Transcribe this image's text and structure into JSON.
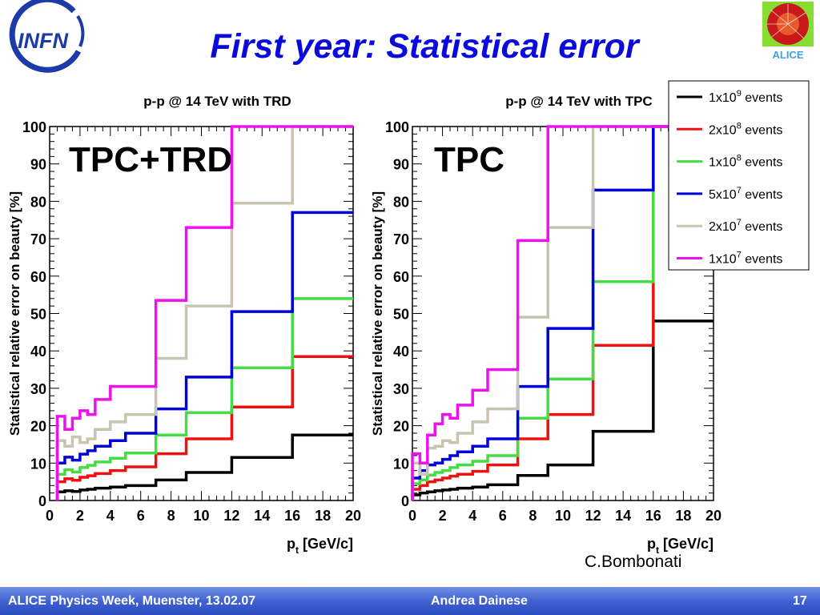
{
  "slide": {
    "title": "First year: Statistical error",
    "infn_logo_text": "INFN",
    "alice_logo_text": "ALICE",
    "left_panel_label": "TPC+TRD",
    "right_panel_label": "TPC",
    "credit": "C.Bombonati"
  },
  "footer": {
    "left": "ALICE Physics Week, Muenster, 13.02.07",
    "center": "Andrea Dainese",
    "page_number": "17"
  },
  "colors": {
    "title": "#0a0adc",
    "footer": "#3d5fd0",
    "1e9": "#000000",
    "2e8": "#ee1111",
    "1e8": "#44dd44",
    "5e7": "#0000dd",
    "2e7": "#c8c4b0",
    "1e7": "#ee11ee"
  },
  "legend": {
    "entries": [
      {
        "key": "1e9",
        "mantissa": "1x10",
        "exponent": "9",
        "suffix": " events"
      },
      {
        "key": "2e8",
        "mantissa": "2x10",
        "exponent": "8",
        "suffix": " events"
      },
      {
        "key": "1e8",
        "mantissa": "1x10",
        "exponent": "8",
        "suffix": " events"
      },
      {
        "key": "5e7",
        "mantissa": "5x10",
        "exponent": "7",
        "suffix": " events"
      },
      {
        "key": "2e7",
        "mantissa": "2x10",
        "exponent": "7",
        "suffix": " events"
      },
      {
        "key": "1e7",
        "mantissa": "1x10",
        "exponent": "7",
        "suffix": " events"
      }
    ]
  },
  "chart_data": [
    {
      "type": "line",
      "title": "p-p @ 14 TeV with TRD",
      "xlabel": "p",
      "xlabel_sub": "t",
      "xlabel_unit": " [GeV/c]",
      "ylabel": "Statistical relative error on beauty [%]",
      "xlim": [
        0,
        20
      ],
      "ylim": [
        0,
        100
      ],
      "xticks": [
        0,
        2,
        4,
        6,
        8,
        10,
        12,
        14,
        16,
        18,
        20
      ],
      "yticks": [
        0,
        10,
        20,
        30,
        40,
        50,
        60,
        70,
        80,
        90,
        100
      ],
      "legend_position": "none",
      "bin_edges": [
        0.5,
        1,
        1.5,
        2,
        2.5,
        3,
        4,
        5,
        7,
        9,
        12,
        16,
        20
      ],
      "series": [
        {
          "key": "1e9",
          "name": "1x10^9 events",
          "values": [
            2.3,
            2.6,
            2.4,
            2.8,
            3.0,
            3.3,
            3.6,
            4.0,
            5.5,
            7.5,
            11.5,
            17.5
          ]
        },
        {
          "key": "2e8",
          "name": "2x10^8 events",
          "values": [
            5.0,
            5.8,
            5.4,
            6.2,
            6.6,
            7.2,
            8.0,
            9.0,
            12.5,
            16.5,
            25.0,
            38.5
          ]
        },
        {
          "key": "1e8",
          "name": "1x10^8 events",
          "values": [
            7.0,
            8.2,
            7.6,
            8.8,
            9.4,
            10.3,
            11.3,
            12.7,
            17.5,
            23.5,
            35.5,
            54.0
          ]
        },
        {
          "key": "5e7",
          "name": "5x10^7 events",
          "values": [
            10.0,
            11.6,
            10.8,
            12.4,
            13.3,
            14.5,
            16.0,
            18.0,
            24.5,
            33.0,
            50.5,
            77.0
          ]
        },
        {
          "key": "2e7",
          "name": "2x10^7 events",
          "values": [
            16.0,
            14.5,
            17.0,
            15.5,
            16.5,
            19.0,
            21.0,
            23.0,
            38.0,
            52.0,
            79.5,
            100
          ]
        },
        {
          "key": "1e7",
          "name": "1x10^7 events",
          "values": [
            22.5,
            19.0,
            22.0,
            24.0,
            23.0,
            27.0,
            30.5,
            30.5,
            53.5,
            73.0,
            100,
            100
          ]
        }
      ]
    },
    {
      "type": "line",
      "title": "p-p @ 14 TeV with TPC",
      "xlabel": "p",
      "xlabel_sub": "t",
      "xlabel_unit": " [GeV/c]",
      "ylabel": "Statistical relative error on beauty [%]",
      "xlim": [
        0,
        20
      ],
      "ylim": [
        0,
        100
      ],
      "xticks": [
        0,
        2,
        4,
        6,
        8,
        10,
        12,
        14,
        16,
        18,
        20
      ],
      "yticks": [
        0,
        10,
        20,
        30,
        40,
        50,
        60,
        70,
        80,
        90,
        100
      ],
      "legend_position": "top-right",
      "bin_edges": [
        0,
        0.5,
        1,
        1.5,
        2,
        2.5,
        3,
        4,
        5,
        7,
        9,
        12,
        16,
        20
      ],
      "series": [
        {
          "key": "1e9",
          "name": "1x10^9 events",
          "values": [
            1.5,
            2.0,
            2.3,
            2.6,
            2.8,
            3.0,
            3.3,
            3.6,
            4.2,
            6.7,
            9.5,
            18.5,
            48.0
          ]
        },
        {
          "key": "2e8",
          "name": "2x10^8 events",
          "values": [
            3.0,
            4.0,
            5.0,
            5.5,
            6.0,
            6.5,
            7.0,
            7.8,
            9.5,
            16.5,
            23.0,
            41.5,
            100
          ]
        },
        {
          "key": "1e8",
          "name": "1x10^8 events",
          "values": [
            4.5,
            5.5,
            6.8,
            7.5,
            8.0,
            8.8,
            9.5,
            10.5,
            12.0,
            22.0,
            32.5,
            58.5,
            100
          ]
        },
        {
          "key": "5e7",
          "name": "5x10^7 events",
          "values": [
            6.0,
            8.0,
            9.5,
            10.0,
            11.0,
            12.0,
            13.0,
            14.5,
            16.5,
            30.5,
            46.0,
            83.0,
            100
          ]
        },
        {
          "key": "2e7",
          "name": "2x10^7 events",
          "values": [
            10.0,
            7.0,
            14.0,
            14.5,
            16.0,
            15.5,
            18.0,
            21.0,
            24.5,
            49.0,
            73.0,
            100,
            100
          ]
        },
        {
          "key": "1e7",
          "name": "1x10^7 events",
          "values": [
            12.5,
            10.0,
            17.5,
            20.5,
            23.0,
            22.0,
            25.5,
            29.5,
            35.0,
            69.5,
            100,
            100,
            100
          ]
        }
      ]
    }
  ]
}
